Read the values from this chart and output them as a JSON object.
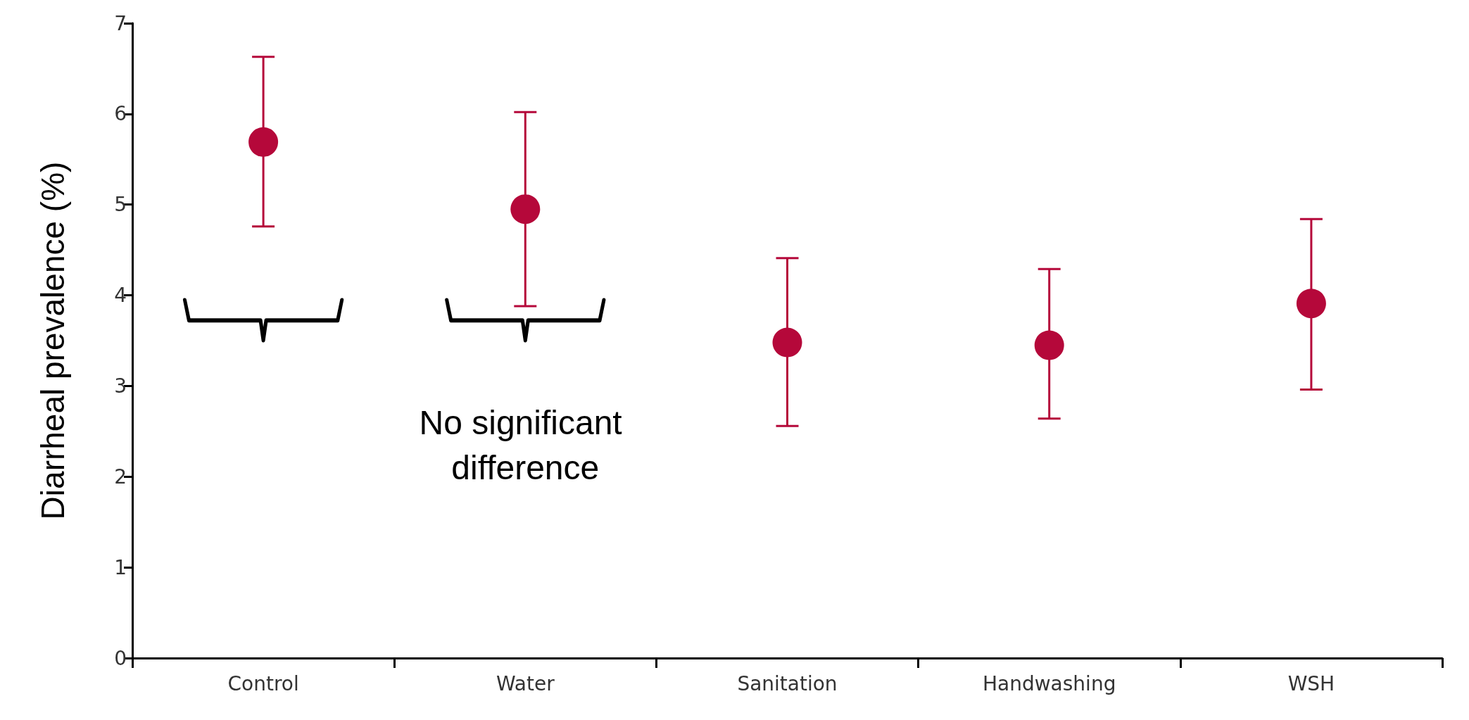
{
  "chart_data": {
    "type": "scatter",
    "ylabel": "Diarrheal prevalence (%)",
    "categories": [
      "Control",
      "Water",
      "Sanitation",
      "Handwashing",
      "WSH"
    ],
    "values": [
      5.69,
      4.95,
      3.48,
      3.45,
      3.91
    ],
    "errors": [
      [
        4.76,
        6.63
      ],
      [
        3.88,
        6.02
      ],
      [
        2.56,
        4.41
      ],
      [
        2.64,
        4.29
      ],
      [
        2.96,
        4.84
      ]
    ],
    "color": "#b5083a",
    "marker": "circle",
    "ylim": [
      0,
      7
    ],
    "yticks": [
      0,
      1,
      2,
      3,
      4,
      5,
      6,
      7
    ],
    "grid": false,
    "annotations": [
      "No significant difference"
    ]
  }
}
